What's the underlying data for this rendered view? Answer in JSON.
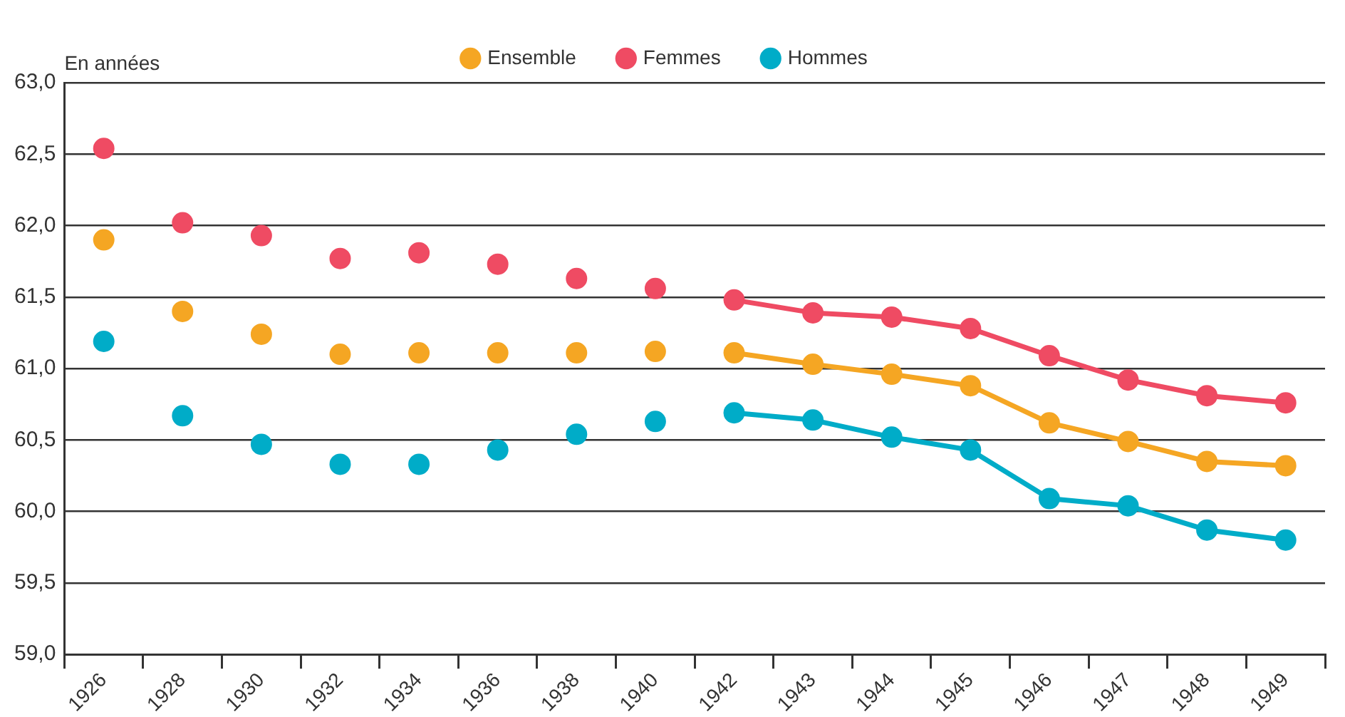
{
  "chart_data": {
    "type": "line",
    "ylabel": "En années",
    "categories": [
      "1926",
      "1928",
      "1930",
      "1932",
      "1934",
      "1936",
      "1938",
      "1940",
      "1942",
      "1943",
      "1944",
      "1945",
      "1946",
      "1947",
      "1948",
      "1949"
    ],
    "series": [
      {
        "name": "Ensemble",
        "type": "line",
        "color": "#f5a623",
        "values": [
          null,
          null,
          null,
          null,
          null,
          null,
          null,
          null,
          61.11,
          61.03,
          60.96,
          60.88,
          60.62,
          60.49,
          60.35,
          60.32
        ]
      },
      {
        "name": "Femmes",
        "type": "line",
        "color": "#ef4b63",
        "values": [
          null,
          null,
          null,
          null,
          null,
          null,
          null,
          null,
          61.48,
          61.39,
          61.36,
          61.28,
          61.09,
          60.92,
          60.81,
          60.76
        ]
      },
      {
        "name": "Hommes",
        "type": "line",
        "color": "#00acc8",
        "values": [
          null,
          null,
          null,
          null,
          null,
          null,
          null,
          null,
          60.69,
          60.64,
          60.52,
          60.43,
          60.09,
          60.04,
          59.87,
          59.8
        ]
      },
      {
        "type": "scatter",
        "color": "#f5a623",
        "values": [
          61.9,
          61.4,
          61.24,
          61.1,
          61.11,
          61.11,
          61.11,
          61.12,
          null,
          null,
          null,
          null,
          null,
          null,
          null,
          null
        ]
      },
      {
        "type": "scatter",
        "color": "#ef4b63",
        "values": [
          62.54,
          62.02,
          61.93,
          61.77,
          61.81,
          61.73,
          61.63,
          61.56,
          null,
          null,
          null,
          null,
          null,
          null,
          null,
          null
        ]
      },
      {
        "type": "scatter",
        "color": "#00acc8",
        "values": [
          61.19,
          60.67,
          60.47,
          60.33,
          60.33,
          60.43,
          60.54,
          60.63,
          null,
          null,
          null,
          null,
          null,
          null,
          null,
          null
        ]
      }
    ],
    "ylim": [
      59,
      63
    ],
    "yticks": [
      {
        "value": 59,
        "label": "59,0"
      },
      {
        "value": 59.5,
        "label": "59,5"
      },
      {
        "value": 60,
        "label": "60,0"
      },
      {
        "value": 60.5,
        "label": "60,5"
      },
      {
        "value": 61,
        "label": "61,0"
      },
      {
        "value": 61.5,
        "label": "61,5"
      },
      {
        "value": 62,
        "label": "62,0"
      },
      {
        "value": 62.5,
        "label": "62,5"
      },
      {
        "value": 63,
        "label": "63,0"
      }
    ],
    "grid": "y",
    "legend": "top",
    "marker": "circle"
  }
}
